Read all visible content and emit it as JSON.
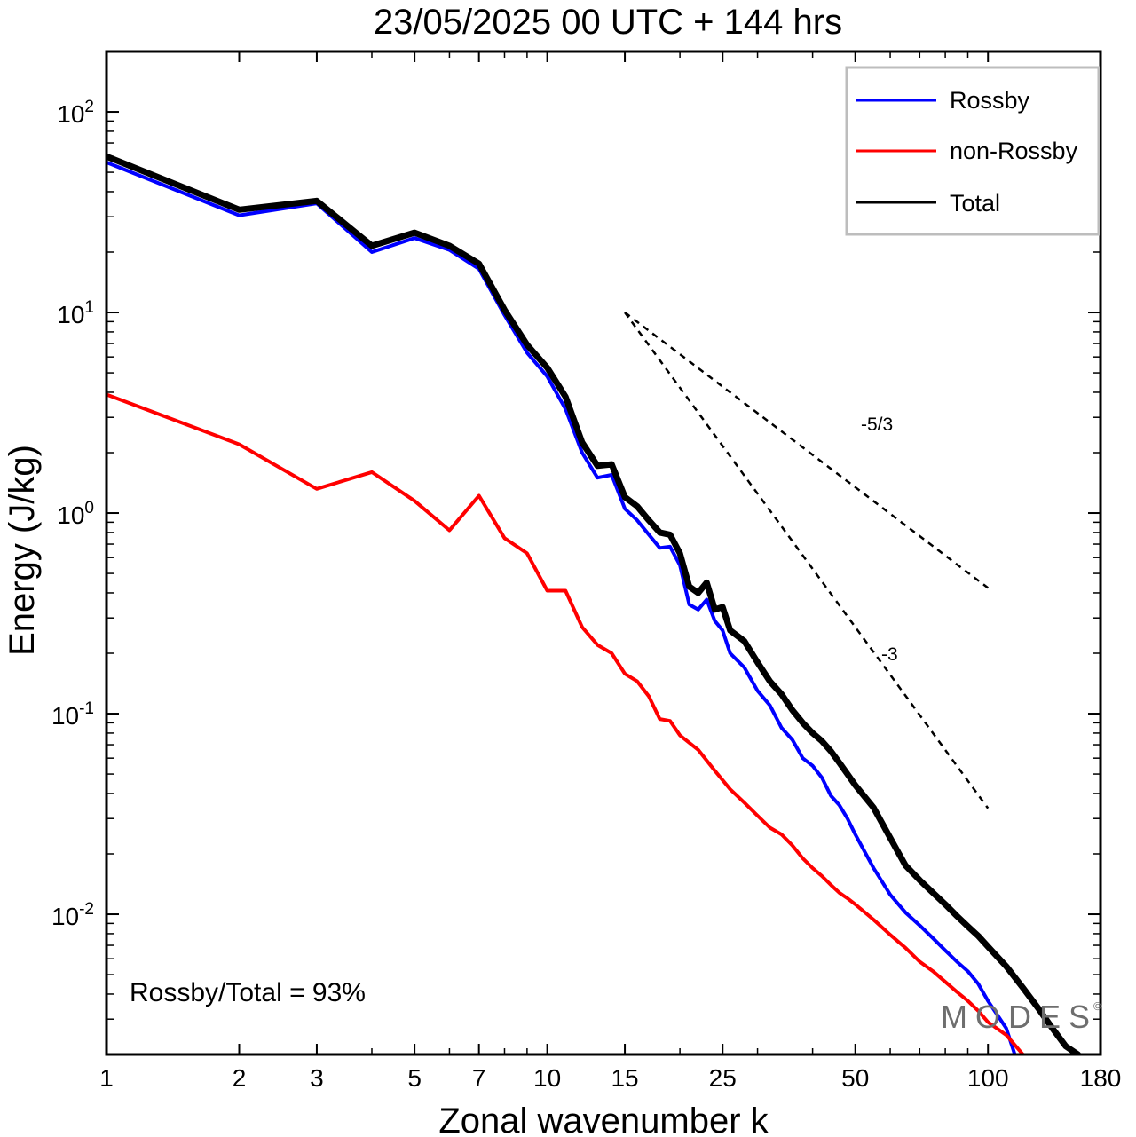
{
  "chart_data": {
    "type": "line",
    "title": "23/05/2025  00 UTC  + 144 hrs",
    "xlabel": "Zonal wavenumber k",
    "ylabel": "Energy (J/kg)",
    "x_scale": "log",
    "y_scale": "log",
    "xlim": [
      1,
      180
    ],
    "ylim": [
      0.002,
      200
    ],
    "x_ticks": [
      {
        "value": 1,
        "label": "1"
      },
      {
        "value": 2,
        "label": "2"
      },
      {
        "value": 3,
        "label": "3"
      },
      {
        "value": 5,
        "label": "5"
      },
      {
        "value": 7,
        "label": "7"
      },
      {
        "value": 10,
        "label": "10"
      },
      {
        "value": 15,
        "label": "15"
      },
      {
        "value": 25,
        "label": "25"
      },
      {
        "value": 50,
        "label": "50"
      },
      {
        "value": 100,
        "label": "100"
      },
      {
        "value": 180,
        "label": "180"
      }
    ],
    "y_ticks": [
      {
        "value": 100,
        "base": "10",
        "exp": "2"
      },
      {
        "value": 10,
        "base": "10",
        "exp": "1"
      },
      {
        "value": 1,
        "base": "10",
        "exp": "0"
      },
      {
        "value": 0.1,
        "base": "10",
        "exp": "-1"
      },
      {
        "value": 0.01,
        "base": "10",
        "exp": "-2"
      }
    ],
    "grid": false,
    "legend_position": "top-right",
    "series": [
      {
        "name": "Rossby",
        "color": "#0000ff",
        "x": [
          1,
          2,
          3,
          4,
          5,
          6,
          7,
          8,
          9,
          10,
          11,
          12,
          13,
          14,
          15,
          16,
          17,
          18,
          19,
          20,
          21,
          22,
          23,
          24,
          25,
          26,
          28,
          30,
          32,
          34,
          36,
          38,
          40,
          42,
          44,
          46,
          48,
          50,
          55,
          60,
          65,
          70,
          75,
          80,
          85,
          90,
          95,
          100,
          110,
          115
        ],
        "y": [
          56,
          30.5,
          35,
          20,
          23.5,
          20.5,
          16.5,
          9.7,
          6.3,
          4.8,
          3.3,
          2.0,
          1.5,
          1.55,
          1.05,
          0.92,
          0.78,
          0.67,
          0.68,
          0.55,
          0.35,
          0.33,
          0.37,
          0.29,
          0.26,
          0.2,
          0.17,
          0.13,
          0.11,
          0.085,
          0.074,
          0.06,
          0.055,
          0.048,
          0.039,
          0.035,
          0.03,
          0.025,
          0.017,
          0.0125,
          0.0102,
          0.0088,
          0.0076,
          0.0066,
          0.0058,
          0.0052,
          0.0045,
          0.0037,
          0.0027,
          0.002
        ]
      },
      {
        "name": "non-Rossby",
        "color": "#ff0000",
        "x": [
          1,
          2,
          3,
          4,
          5,
          6,
          7,
          8,
          9,
          10,
          11,
          12,
          13,
          14,
          15,
          16,
          17,
          18,
          19,
          20,
          22,
          24,
          26,
          28,
          30,
          32,
          34,
          36,
          38,
          40,
          42,
          44,
          46,
          48,
          50,
          55,
          60,
          65,
          70,
          75,
          80,
          85,
          90,
          95,
          100,
          110,
          120
        ],
        "y": [
          3.9,
          2.2,
          1.32,
          1.6,
          1.15,
          0.82,
          1.22,
          0.75,
          0.63,
          0.41,
          0.41,
          0.27,
          0.22,
          0.2,
          0.158,
          0.145,
          0.122,
          0.094,
          0.092,
          0.078,
          0.066,
          0.052,
          0.042,
          0.036,
          0.031,
          0.027,
          0.025,
          0.022,
          0.019,
          0.017,
          0.0155,
          0.014,
          0.0128,
          0.012,
          0.0112,
          0.0094,
          0.0079,
          0.0068,
          0.0058,
          0.0052,
          0.0046,
          0.0041,
          0.0037,
          0.0033,
          0.0029,
          0.0025,
          0.002
        ]
      },
      {
        "name": "Total",
        "color": "#000000",
        "x": [
          1,
          2,
          3,
          4,
          5,
          6,
          7,
          8,
          9,
          10,
          11,
          12,
          13,
          14,
          15,
          16,
          17,
          18,
          19,
          20,
          21,
          22,
          23,
          24,
          25,
          26,
          28,
          30,
          32,
          34,
          36,
          38,
          40,
          42,
          44,
          46,
          48,
          50,
          55,
          60,
          65,
          70,
          75,
          80,
          85,
          90,
          95,
          100,
          110,
          120,
          130,
          140,
          150,
          160
        ],
        "y": [
          60,
          32.5,
          36,
          21.5,
          25,
          21.5,
          17.5,
          10.3,
          6.9,
          5.3,
          3.8,
          2.25,
          1.72,
          1.75,
          1.2,
          1.08,
          0.92,
          0.8,
          0.78,
          0.63,
          0.43,
          0.4,
          0.45,
          0.33,
          0.34,
          0.26,
          0.23,
          0.18,
          0.145,
          0.125,
          0.104,
          0.09,
          0.08,
          0.073,
          0.065,
          0.057,
          0.05,
          0.044,
          0.034,
          0.024,
          0.0175,
          0.0148,
          0.0128,
          0.0112,
          0.0098,
          0.0087,
          0.0078,
          0.0069,
          0.0055,
          0.0043,
          0.0034,
          0.0027,
          0.0022,
          0.002
        ]
      }
    ],
    "reference_lines": [
      {
        "label": "-5/3",
        "k_start": 15,
        "k_end": 100,
        "e_start": 10
      },
      {
        "label": "-3",
        "k_start": 15,
        "k_end": 100,
        "e_start": 10
      }
    ],
    "annotations": {
      "ratio_text": "Rossby/Total = 93%"
    }
  },
  "watermark": {
    "text": "MODES",
    "symbol": "©"
  }
}
